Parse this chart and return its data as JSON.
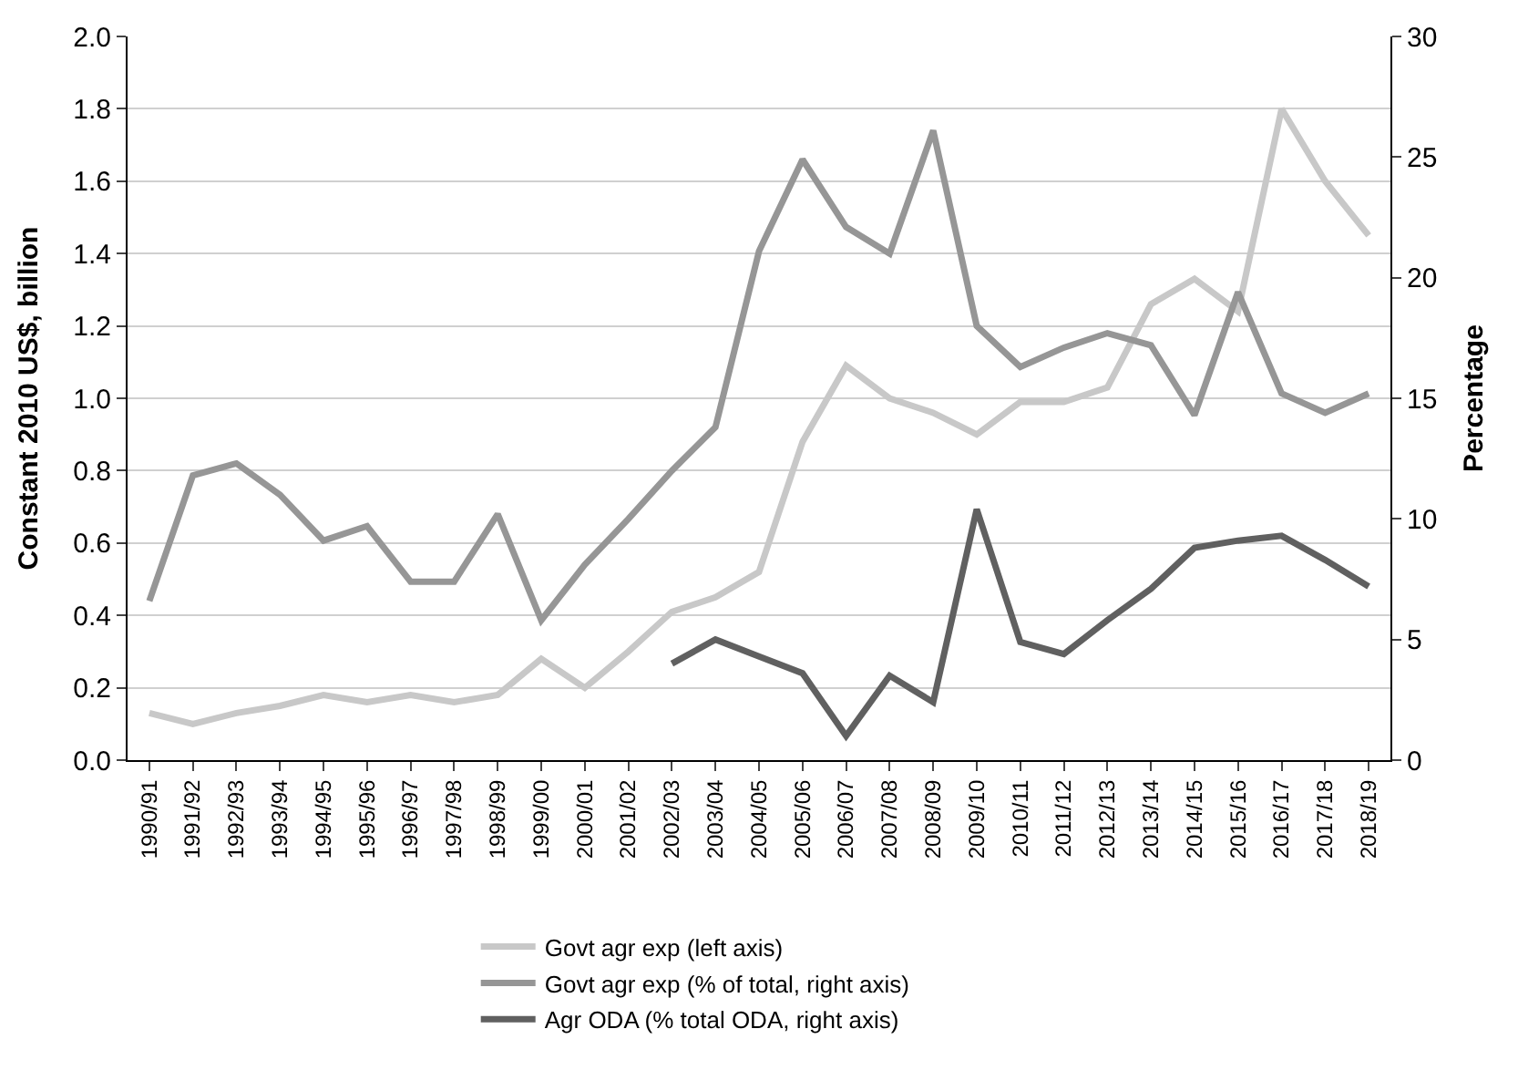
{
  "chart_data": {
    "type": "line",
    "ylabel": "Constant 2010 US$, billion",
    "y2label": "Percentage",
    "categories": [
      "1990/91",
      "1991/92",
      "1992/93",
      "1993/94",
      "1994/95",
      "1995/96",
      "1996/97",
      "1997/98",
      "1998/99",
      "1999/00",
      "2000/01",
      "2001/02",
      "2002/03",
      "2003/04",
      "2004/05",
      "2005/06",
      "2006/07",
      "2007/08",
      "2008/09",
      "2009/10",
      "2010/11",
      "2011/12",
      "2012/13",
      "2013/14",
      "2014/15",
      "2015/16",
      "2016/17",
      "2017/18",
      "2018/19"
    ],
    "series": [
      {
        "name": "Govt agr exp (left axis)",
        "color": "#c8c8c8",
        "values": [
          0.13,
          0.1,
          0.13,
          0.15,
          0.18,
          0.16,
          0.18,
          0.16,
          0.18,
          0.28,
          0.2,
          0.3,
          0.41,
          0.45,
          0.52,
          0.88,
          1.09,
          1.0,
          0.96,
          0.9,
          0.99,
          0.99,
          1.03,
          1.26,
          1.33,
          1.24,
          1.8,
          1.6,
          1.45
        ]
      },
      {
        "name": "Govt agr exp (% of total, right axis)",
        "color": "#969696",
        "axis": "y2",
        "values": [
          6.6,
          11.8,
          12.3,
          11.0,
          9.1,
          9.7,
          7.4,
          7.4,
          10.2,
          5.8,
          8.1,
          10.0,
          12.0,
          13.8,
          21.1,
          24.9,
          22.1,
          21.0,
          26.1,
          18.0,
          16.3,
          17.1,
          17.7,
          17.2,
          14.3,
          19.4,
          15.2,
          14.4,
          15.2
        ]
      },
      {
        "name": "Agr ODA (% total ODA, right axis)",
        "color": "#606060",
        "axis": "y2",
        "values": [
          null,
          null,
          null,
          null,
          null,
          null,
          null,
          null,
          null,
          null,
          null,
          null,
          4.0,
          5.0,
          4.3,
          3.6,
          1.0,
          3.5,
          2.4,
          10.4,
          4.9,
          4.4,
          5.8,
          7.1,
          8.8,
          9.1,
          9.3,
          8.3,
          7.2
        ]
      }
    ],
    "ylim": [
      0,
      2.0
    ],
    "yticks": [
      {
        "value": 0,
        "label": "0.0"
      },
      {
        "value": 0.2,
        "label": "0.2"
      },
      {
        "value": 0.4,
        "label": "0.4"
      },
      {
        "value": 0.6,
        "label": "0.6"
      },
      {
        "value": 0.8,
        "label": "0.8"
      },
      {
        "value": 1.0,
        "label": "1.0"
      },
      {
        "value": 1.2,
        "label": "1.2"
      },
      {
        "value": 1.4,
        "label": "1.4"
      },
      {
        "value": 1.6,
        "label": "1.6"
      },
      {
        "value": 1.8,
        "label": "1.8"
      },
      {
        "value": 2.0,
        "label": "2.0"
      }
    ],
    "y2lim": [
      0,
      30
    ],
    "y2ticks": [
      0,
      5,
      10,
      15,
      20,
      25,
      30
    ],
    "grid": "y",
    "legend": "bottom",
    "line_style": "solid",
    "marker": "none"
  }
}
